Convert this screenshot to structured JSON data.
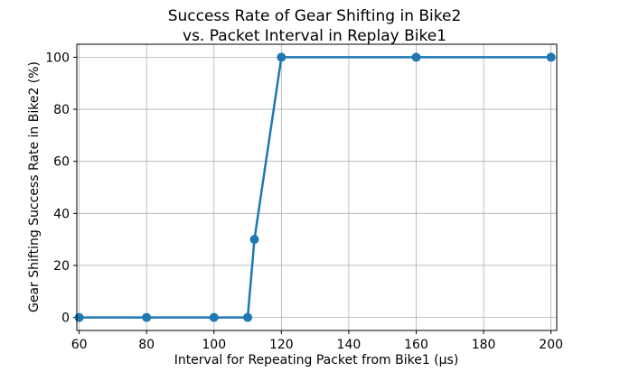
{
  "chart_data": {
    "type": "line",
    "title_line1": "Success Rate of Gear Shifting in Bike2",
    "title_line2": "vs. Packet Interval in Replay Bike1",
    "xlabel": "Interval for Repeating Packet from Bike1 (μs)",
    "ylabel": "Gear Shifting Success Rate in Bike2  (%)",
    "xlim": [
      59.3,
      201.7
    ],
    "ylim": [
      -5,
      105
    ],
    "xticks": [
      60,
      80,
      100,
      120,
      140,
      160,
      180,
      200
    ],
    "yticks": [
      0,
      20,
      40,
      60,
      80,
      100
    ],
    "grid": true,
    "series": [
      {
        "color": "#1f77b4",
        "x": [
          60,
          80,
          100,
          110,
          112,
          120,
          160,
          200
        ],
        "y": [
          0,
          0,
          0,
          0,
          30,
          100,
          100,
          100
        ]
      }
    ]
  }
}
